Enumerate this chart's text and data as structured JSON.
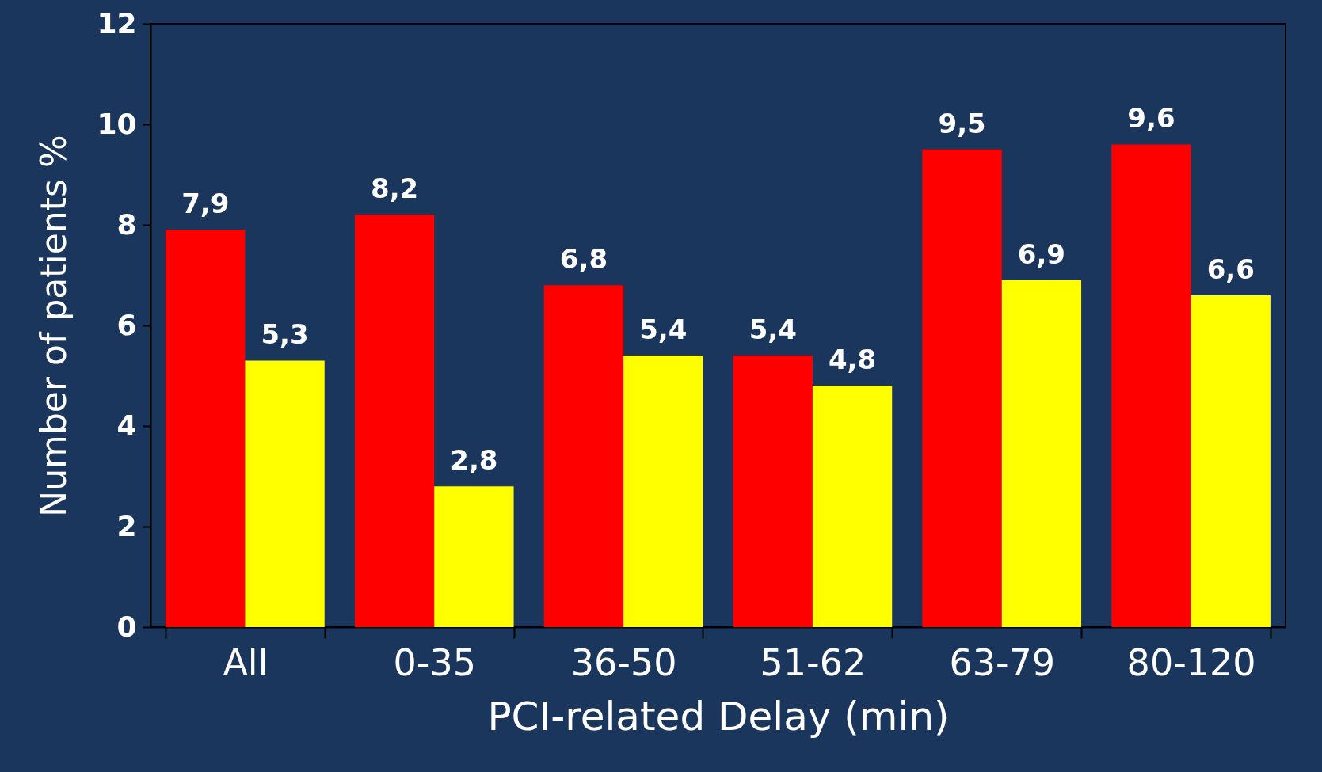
{
  "chart_data": {
    "type": "bar",
    "xlabel": "PCI-related Delay (min)",
    "ylabel": "Number of patients %",
    "categories": [
      "All",
      "0-35",
      "36-50",
      "51-62",
      "63-79",
      "80-120"
    ],
    "series": [
      {
        "color": "#ff0000",
        "values": [
          7.9,
          8.2,
          6.8,
          5.4,
          9.5,
          9.6
        ],
        "value_labels": [
          "7,9",
          "8,2",
          "6,8",
          "5,4",
          "9,5",
          "9,6"
        ]
      },
      {
        "color": "#ffff00",
        "values": [
          5.3,
          2.8,
          5.4,
          4.8,
          6.9,
          6.6
        ],
        "value_labels": [
          "5,3",
          "2,8",
          "5,4",
          "4,8",
          "6,9",
          "6,6"
        ]
      }
    ],
    "ylim": [
      0,
      12
    ],
    "yticks": [
      0,
      2,
      4,
      6,
      8,
      10,
      12
    ],
    "grid": false,
    "legend": false
  }
}
